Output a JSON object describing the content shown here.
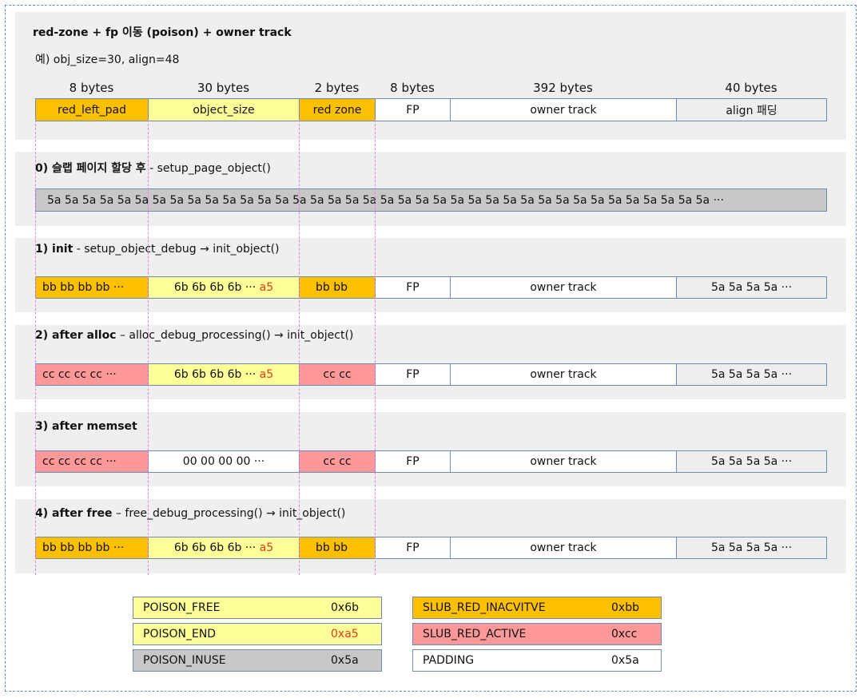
{
  "header": {
    "title": "red-zone + fp 이동 (poison) + owner track",
    "example": "예) obj_size=30, align=48",
    "byte_labels": [
      "8 bytes",
      "30 bytes",
      "2 bytes",
      "8 bytes",
      "392 bytes",
      "40 bytes"
    ],
    "cells": [
      "red_left_pad",
      "object_size",
      "red zone",
      "FP",
      "owner track",
      "align 패딩"
    ]
  },
  "stage0": {
    "title_bold": "0) 슬랩 페이지 할당 후",
    "title_rest": " - setup_page_object()",
    "content": "5a 5a 5a 5a 5a 5a 5a 5a 5a 5a 5a 5a 5a 5a 5a 5a 5a 5a 5a 5a 5a 5a 5a 5a 5a 5a 5a 5a 5a 5a 5a 5a 5a 5a 5a 5a 5a 5a ···"
  },
  "stage1": {
    "title_bold": "1) init",
    "title_rest": "  - setup_object_debug → init_object()",
    "c1": "bb bb bb bb ···",
    "c2_main": "6b 6b 6b 6b ···",
    "c2_end": "a5",
    "c3": "bb bb",
    "c4": "FP",
    "c5": "owner track",
    "c6": "5a 5a 5a 5a ···"
  },
  "stage2": {
    "title_bold": "2) after alloc",
    "title_rest": " – alloc_debug_processing() →  init_object()",
    "c1": "cc cc cc cc ···",
    "c2_main": "6b 6b 6b 6b ···",
    "c2_end": "a5",
    "c3": "cc cc",
    "c4": "FP",
    "c5": "owner track",
    "c6": "5a 5a 5a 5a ···"
  },
  "stage3": {
    "title_bold": "3) after memset",
    "title_rest": "",
    "c1": "cc cc cc cc ···",
    "c2_main": "00 00 00 00 ···",
    "c3": "cc cc",
    "c4": "FP",
    "c5": "owner track",
    "c6": "5a 5a 5a 5a ···"
  },
  "stage4": {
    "title_bold": "4) after free",
    "title_rest": " – free_debug_processing() → init_object()",
    "c1": "bb bb bb bb ···",
    "c2_main": "6b 6b 6b 6b ···",
    "c2_end": "a5",
    "c3": "bb bb",
    "c4": "FP",
    "c5": "owner track",
    "c6": "5a 5a 5a 5a ···"
  },
  "legend": [
    {
      "name": "POISON_FREE",
      "value": "0x6b",
      "color": "#ffff99"
    },
    {
      "name": "POISON_END",
      "value": "0xa5",
      "color": "#ffff99",
      "value_color": "#e23b1d"
    },
    {
      "name": "POISON_INUSE",
      "value": "0x5a",
      "color": "#c8c8c8"
    },
    {
      "name": "SLUB_RED_INACVITVE",
      "value": "0xbb",
      "color": "#ffc000"
    },
    {
      "name": "SLUB_RED_ACTIVE",
      "value": "0xcc",
      "color": "#ff9999"
    },
    {
      "name": "PADDING",
      "value": "0x5a",
      "color": "#ffffff"
    }
  ]
}
